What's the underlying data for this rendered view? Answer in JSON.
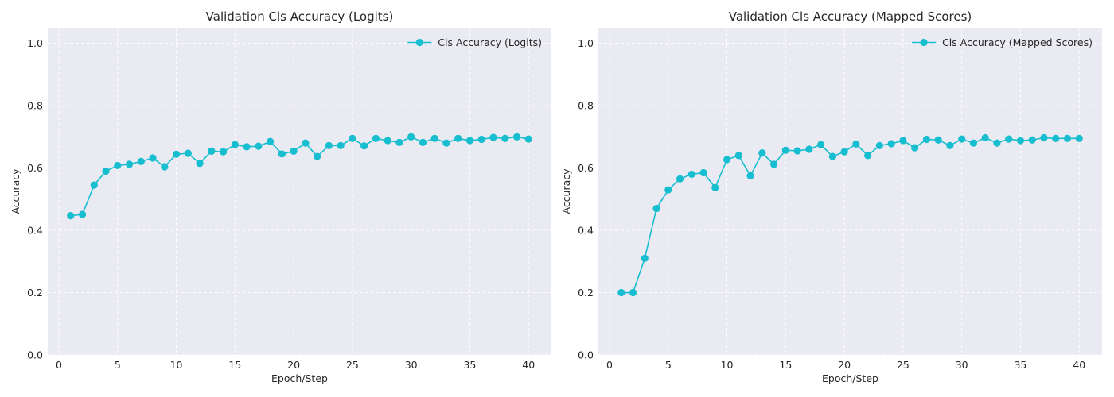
{
  "series_color": "#17becf",
  "chart_data": [
    {
      "type": "line",
      "title": "Validation Cls Accuracy (Logits)",
      "xlabel": "Epoch/Step",
      "ylabel": "Accuracy",
      "xlim": [
        -0.95,
        41.95
      ],
      "ylim": [
        0.0,
        1.05
      ],
      "xticks": [
        0,
        5,
        10,
        15,
        20,
        25,
        30,
        35,
        40
      ],
      "yticks": [
        "0.0",
        "0.2",
        "0.4",
        "0.6",
        "0.8",
        "1.0"
      ],
      "grid": true,
      "legend": "top-right",
      "series": [
        {
          "name": "Cls Accuracy (Logits)",
          "x": [
            1,
            2,
            3,
            4,
            5,
            6,
            7,
            8,
            9,
            10,
            11,
            12,
            13,
            14,
            15,
            16,
            17,
            18,
            19,
            20,
            21,
            22,
            23,
            24,
            25,
            26,
            27,
            28,
            29,
            30,
            31,
            32,
            33,
            34,
            35,
            36,
            37,
            38,
            39,
            40
          ],
          "values": [
            0.447,
            0.451,
            0.545,
            0.59,
            0.608,
            0.612,
            0.621,
            0.632,
            0.604,
            0.644,
            0.647,
            0.615,
            0.654,
            0.652,
            0.675,
            0.668,
            0.67,
            0.685,
            0.645,
            0.654,
            0.68,
            0.637,
            0.672,
            0.672,
            0.695,
            0.671,
            0.695,
            0.688,
            0.682,
            0.7,
            0.682,
            0.695,
            0.68,
            0.695,
            0.688,
            0.692,
            0.698,
            0.695,
            0.7,
            0.693
          ]
        }
      ]
    },
    {
      "type": "line",
      "title": "Validation Cls Accuracy (Mapped Scores)",
      "xlabel": "Epoch/Step",
      "ylabel": "Accuracy",
      "xlim": [
        -0.95,
        41.95
      ],
      "ylim": [
        0.0,
        1.05
      ],
      "xticks": [
        0,
        5,
        10,
        15,
        20,
        25,
        30,
        35,
        40
      ],
      "yticks": [
        "0.0",
        "0.2",
        "0.4",
        "0.6",
        "0.8",
        "1.0"
      ],
      "grid": true,
      "legend": "top-right",
      "series": [
        {
          "name": "Cls Accuracy (Mapped Scores)",
          "x": [
            1,
            2,
            3,
            4,
            5,
            6,
            7,
            8,
            9,
            10,
            11,
            12,
            13,
            14,
            15,
            16,
            17,
            18,
            19,
            20,
            21,
            22,
            23,
            24,
            25,
            26,
            27,
            28,
            29,
            30,
            31,
            32,
            33,
            34,
            35,
            36,
            37,
            38,
            39,
            40
          ],
          "values": [
            0.2,
            0.2,
            0.31,
            0.47,
            0.53,
            0.565,
            0.58,
            0.585,
            0.537,
            0.627,
            0.64,
            0.575,
            0.648,
            0.612,
            0.657,
            0.655,
            0.66,
            0.675,
            0.637,
            0.652,
            0.677,
            0.64,
            0.672,
            0.678,
            0.688,
            0.665,
            0.692,
            0.69,
            0.672,
            0.693,
            0.68,
            0.697,
            0.68,
            0.693,
            0.688,
            0.69,
            0.697,
            0.695,
            0.695,
            0.695
          ]
        }
      ]
    }
  ]
}
